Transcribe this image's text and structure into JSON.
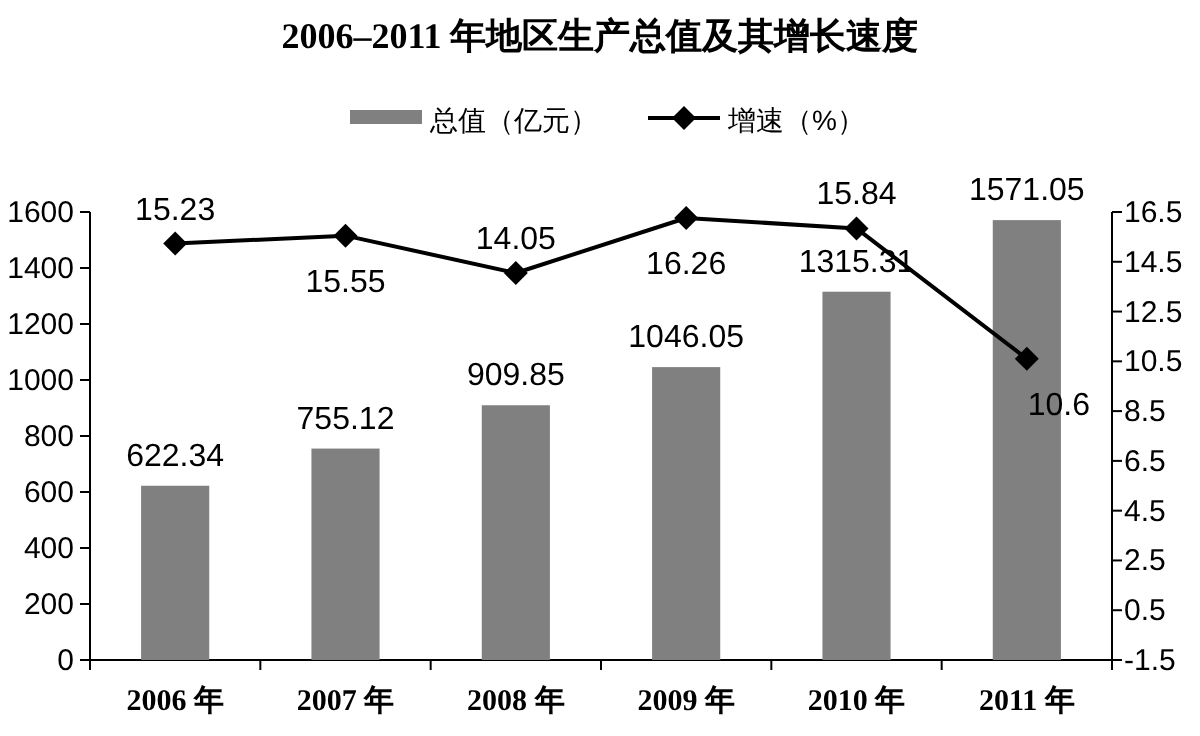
{
  "chart_data": {
    "type": "bar",
    "title": "2006–2011 年地区生产总值及其增长速度",
    "categories": [
      "2006 年",
      "2007 年",
      "2008 年",
      "2009 年",
      "2010 年",
      "2011 年"
    ],
    "series": [
      {
        "name": "总值（亿元）",
        "color": "#808080",
        "values": [
          622.34,
          755.12,
          909.85,
          1046.05,
          1315.31,
          1571.05
        ]
      },
      {
        "name": "增速（%）",
        "type": "line",
        "axis": "y2",
        "color": "#000000",
        "values": [
          15.23,
          15.55,
          14.05,
          16.26,
          15.84,
          10.6
        ]
      }
    ],
    "ylim": [
      0,
      1600
    ],
    "yticks": [
      0,
      200,
      400,
      600,
      800,
      1000,
      1200,
      1400,
      1600
    ],
    "y2lim": [
      -1.5,
      16.5
    ],
    "y2ticks": [
      -1.5,
      0.5,
      2.5,
      4.5,
      6.5,
      8.5,
      10.5,
      12.5,
      14.5,
      16.5
    ],
    "data_labels": true,
    "legend": "top",
    "grid": false,
    "marker": "diamond",
    "line_style": "solid"
  }
}
